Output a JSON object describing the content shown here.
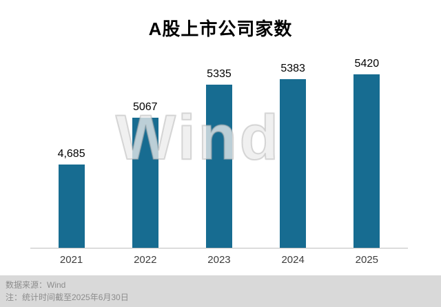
{
  "chart_data": {
    "type": "bar",
    "title": "A股上市公司家数",
    "categories": [
      "2021",
      "2022",
      "2023",
      "2024",
      "2025"
    ],
    "values": [
      4685,
      5067,
      5335,
      5383,
      5420
    ],
    "value_labels": [
      "4,685",
      "5067",
      "5335",
      "5383",
      "5420"
    ],
    "xlabel": "",
    "ylabel": "",
    "ylim": [
      4000,
      5600
    ],
    "grid": false,
    "legend_position": "none",
    "bar_color": "#176C91",
    "axis_line_color": "#bdbdbd"
  },
  "watermark": "Wind",
  "footer": {
    "source": "数据来源：Wind",
    "note": "注：统计时间截至2025年6月30日"
  }
}
